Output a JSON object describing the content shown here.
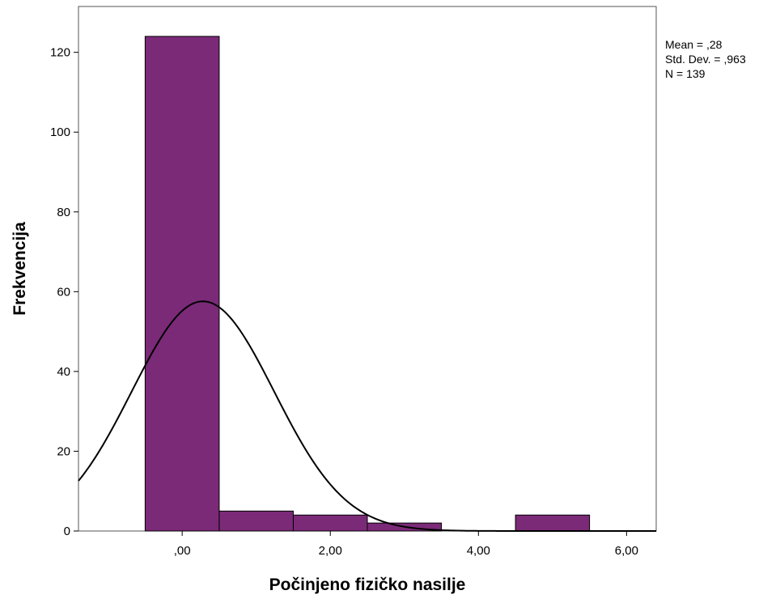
{
  "chart_data": {
    "type": "bar",
    "subtype": "histogram",
    "xlabel": "Počinjeno fizičko nasilje",
    "ylabel": "Frekvencija",
    "xlim": [
      -1.4,
      6.4
    ],
    "ylim": [
      0,
      131.5
    ],
    "x_ticks": [
      0,
      2,
      4,
      6
    ],
    "x_tick_labels": [
      ",00",
      "2,00",
      "4,00",
      "6,00"
    ],
    "y_ticks": [
      0,
      20,
      40,
      60,
      80,
      100,
      120
    ],
    "y_tick_labels": [
      "0",
      "20",
      "40",
      "60",
      "80",
      "100",
      "120"
    ],
    "bins": [
      {
        "from": -0.5,
        "to": 0.5,
        "count": 124
      },
      {
        "from": 0.5,
        "to": 1.5,
        "count": 5
      },
      {
        "from": 1.5,
        "to": 2.5,
        "count": 4
      },
      {
        "from": 2.5,
        "to": 3.5,
        "count": 2
      },
      {
        "from": 3.5,
        "to": 4.5,
        "count": 0
      },
      {
        "from": 4.5,
        "to": 5.5,
        "count": 4
      }
    ],
    "normal_curve": {
      "mean": 0.28,
      "std": 0.963,
      "n": 139,
      "bin_width": 1
    },
    "stats_lines": [
      "Mean = ,28",
      "Std. Dev. = ,963",
      "N = 139"
    ],
    "bar_color": "#7b2a78",
    "bar_edge_color": "#000000",
    "curve_color": "#000000",
    "grid": false,
    "legend": "top-right"
  }
}
